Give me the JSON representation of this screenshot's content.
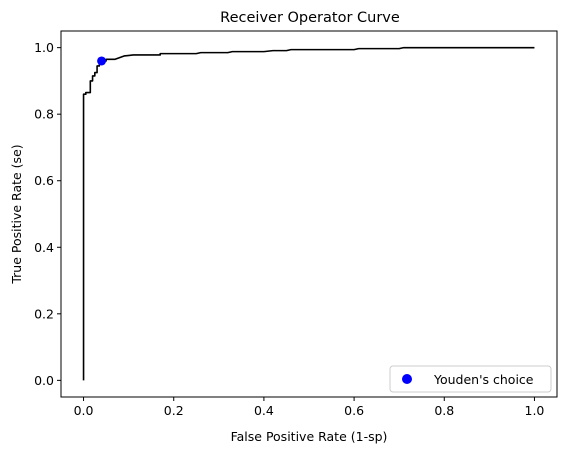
{
  "chart_data": {
    "type": "line",
    "title": "Receiver Operator Curve",
    "xlabel": "False Positive Rate (1-sp)",
    "ylabel": "True Positive Rate (se)",
    "xlim": [
      -0.05,
      1.05
    ],
    "ylim": [
      -0.05,
      1.05
    ],
    "xticks": [
      0.0,
      0.2,
      0.4,
      0.6,
      0.8,
      1.0
    ],
    "yticks": [
      0.0,
      0.2,
      0.4,
      0.6,
      0.8,
      1.0
    ],
    "xtick_labels": [
      "0.0",
      "0.2",
      "0.4",
      "0.6",
      "0.8",
      "1.0"
    ],
    "ytick_labels": [
      "0.0",
      "0.2",
      "0.4",
      "0.6",
      "0.8",
      "1.0"
    ],
    "grid": false,
    "legend_position": "bottom-right",
    "series": [
      {
        "type": "line",
        "color": "#000000",
        "x": [
          0.0,
          0.0,
          0.005,
          0.005,
          0.015,
          0.015,
          0.02,
          0.02,
          0.025,
          0.025,
          0.03,
          0.03,
          0.035,
          0.035,
          0.04,
          0.04,
          0.05,
          0.05,
          0.07,
          0.08,
          0.09,
          0.11,
          0.13,
          0.15,
          0.17,
          0.17,
          0.25,
          0.26,
          0.32,
          0.33,
          0.4,
          0.42,
          0.45,
          0.46,
          0.6,
          0.61,
          0.7,
          0.71,
          1.0
        ],
        "y": [
          0.0,
          0.86,
          0.86,
          0.865,
          0.865,
          0.9,
          0.9,
          0.915,
          0.915,
          0.925,
          0.925,
          0.945,
          0.945,
          0.955,
          0.955,
          0.96,
          0.96,
          0.965,
          0.965,
          0.97,
          0.975,
          0.978,
          0.978,
          0.978,
          0.978,
          0.982,
          0.982,
          0.985,
          0.985,
          0.988,
          0.988,
          0.991,
          0.991,
          0.994,
          0.994,
          0.997,
          0.997,
          1.0,
          1.0
        ]
      },
      {
        "type": "scatter",
        "name": "Youden's choice",
        "color": "#0000ff",
        "x": [
          0.04
        ],
        "y": [
          0.96
        ]
      }
    ]
  }
}
